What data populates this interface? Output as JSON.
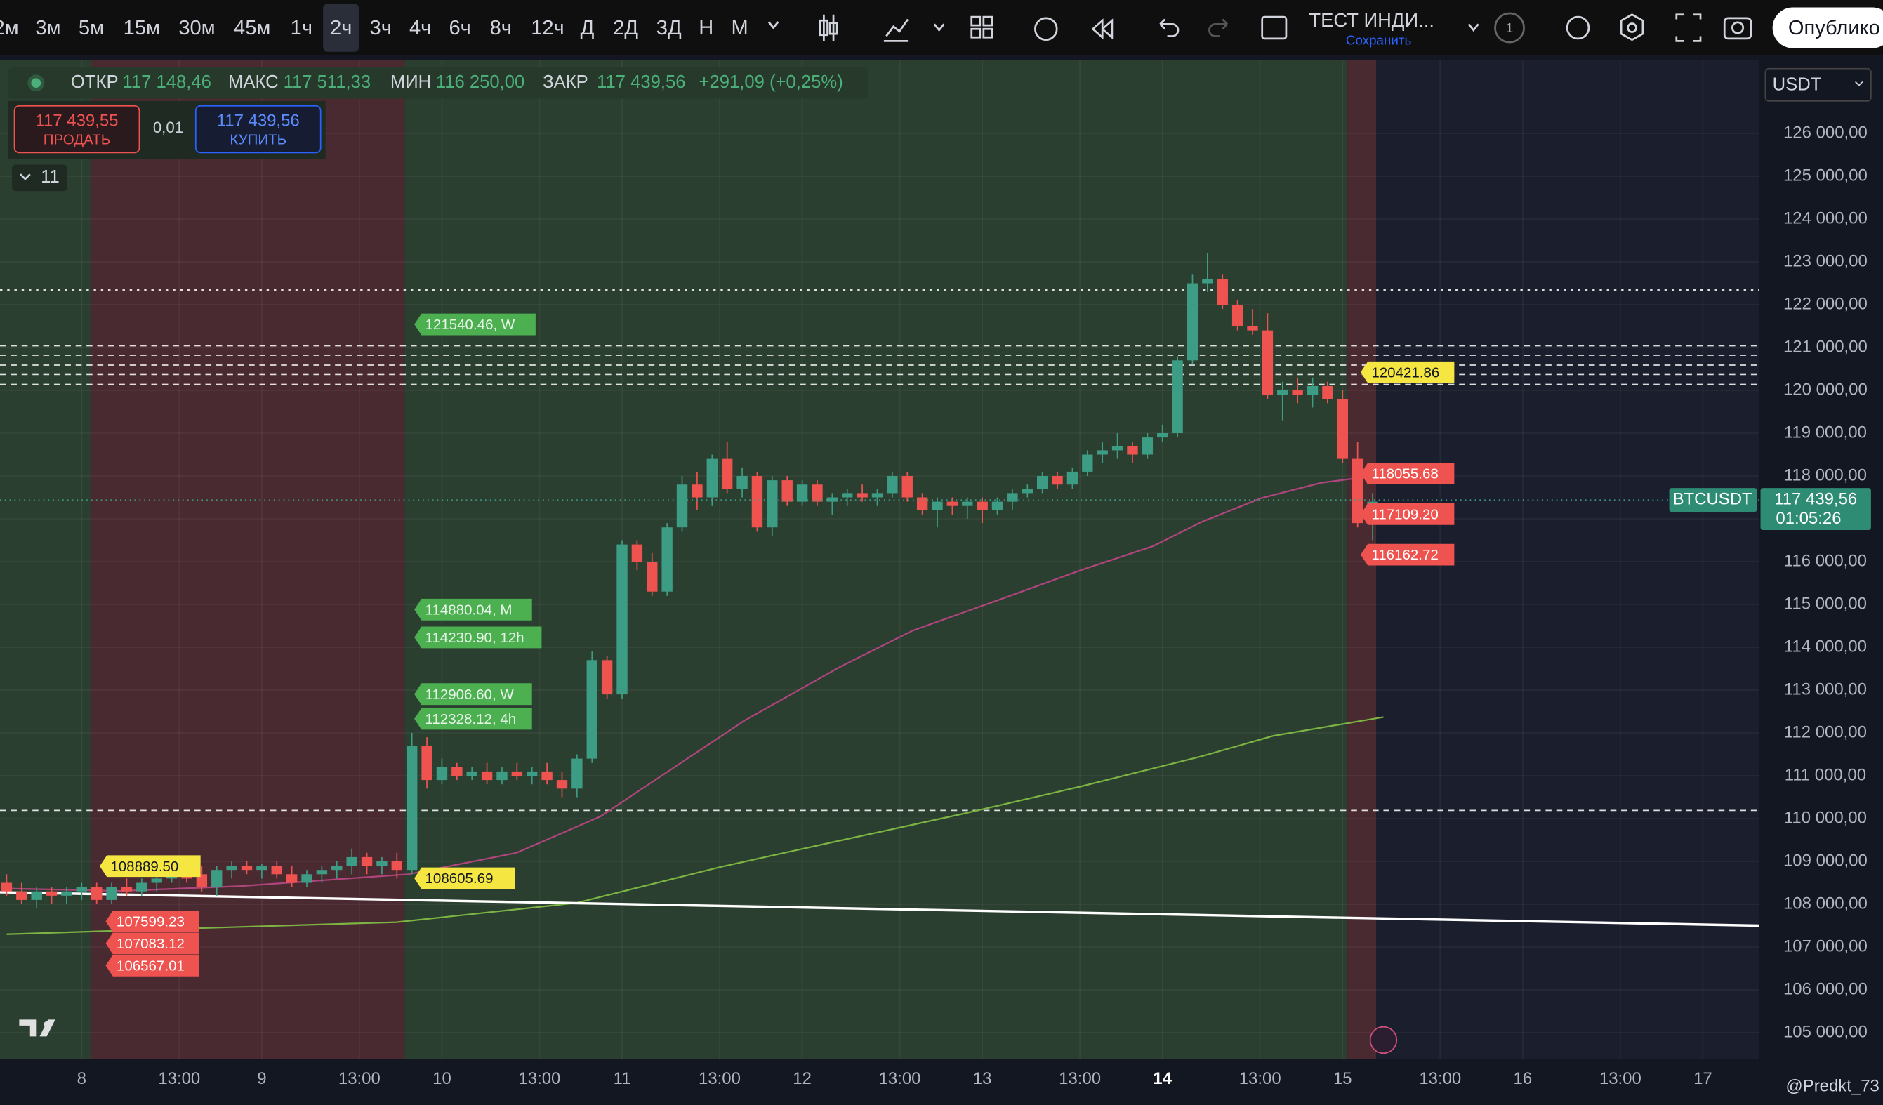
{
  "toolbar": {
    "intervals": [
      "2м",
      "3м",
      "5м",
      "15м",
      "30м",
      "45м",
      "1ч",
      "2ч",
      "3ч",
      "4ч",
      "6ч",
      "8ч",
      "12ч",
      "Д",
      "2Д",
      "3Д",
      "Н",
      "М"
    ],
    "selected_index": 7,
    "indicator": "ТЕСТ ИНДИ...",
    "save": "Сохранить",
    "alerts": "1",
    "publish": "Опублико"
  },
  "legend": {
    "open_label": "ОТКР",
    "open": "117 148,46",
    "high_label": "МАКС",
    "high": "117 511,33",
    "low_label": "МИН",
    "low": "116 250,00",
    "close_label": "ЗАКР",
    "close": "117 439,56",
    "change": "+291,09 (+0,25%)"
  },
  "trade": {
    "sell_price": "117 439,55",
    "sell": "ПРОДАТЬ",
    "spread": "0,01",
    "buy_price": "117 439,56",
    "buy": "КУПИТЬ",
    "indicators_count": "11"
  },
  "watermark": "@Predkt_73",
  "chart_data": {
    "type": "candlestick",
    "symbol": "BTCUSDT",
    "currency": "USDT",
    "countdown": "01:05:26",
    "last_price": {
      "value": 117439.56,
      "label": "117 439,56"
    },
    "up_color": "#3d9c84",
    "down_color": "#ef5350",
    "xlim": [
      -0.44,
      116.76
    ],
    "ylim": [
      104380,
      127710
    ],
    "xticks": [
      {
        "value": 5,
        "label": "8"
      },
      {
        "value": 11.5,
        "label": "13:00"
      },
      {
        "value": 17,
        "label": "9"
      },
      {
        "value": 23.5,
        "label": "13:00"
      },
      {
        "value": 29,
        "label": "10"
      },
      {
        "value": 35.5,
        "label": "13:00"
      },
      {
        "value": 41,
        "label": "11"
      },
      {
        "value": 47.5,
        "label": "13:00"
      },
      {
        "value": 53,
        "label": "12"
      },
      {
        "value": 59.5,
        "label": "13:00"
      },
      {
        "value": 65,
        "label": "13"
      },
      {
        "value": 71.5,
        "label": "13:00"
      },
      {
        "value": 77,
        "label": "14"
      },
      {
        "value": 83.5,
        "label": "13:00"
      },
      {
        "value": 89,
        "label": "15"
      },
      {
        "value": 95.5,
        "label": "13:00"
      },
      {
        "value": 101,
        "label": "16"
      },
      {
        "value": 107.5,
        "label": "13:00"
      },
      {
        "value": 113,
        "label": "17"
      }
    ],
    "highlight_xtick": 12,
    "yticks": [
      {
        "value": 105000,
        "label": "105 000,00"
      },
      {
        "value": 106000,
        "label": "106 000,00"
      },
      {
        "value": 107000,
        "label": "107 000,00"
      },
      {
        "value": 108000,
        "label": "108 000,00"
      },
      {
        "value": 109000,
        "label": "109 000,00"
      },
      {
        "value": 110000,
        "label": "110 000,00"
      },
      {
        "value": 111000,
        "label": "111 000,00"
      },
      {
        "value": 112000,
        "label": "112 000,00"
      },
      {
        "value": 113000,
        "label": "113 000,00"
      },
      {
        "value": 114000,
        "label": "114 000,00"
      },
      {
        "value": 115000,
        "label": "115 000,00"
      },
      {
        "value": 116000,
        "label": "116 000,00"
      },
      {
        "value": 117000,
        "label": "117 000,00"
      },
      {
        "value": 118000,
        "label": "118 000,00"
      },
      {
        "value": 119000,
        "label": "119 000,00"
      },
      {
        "value": 120000,
        "label": "120 000,00"
      },
      {
        "value": 121000,
        "label": "121 000,00"
      },
      {
        "value": 122000,
        "label": "122 000,00"
      },
      {
        "value": 123000,
        "label": "123 000,00"
      },
      {
        "value": 124000,
        "label": "124 000,00"
      },
      {
        "value": 125000,
        "label": "125 000,00"
      },
      {
        "value": 126000,
        "label": "126 000,00"
      }
    ],
    "candles": [
      [
        108500,
        108700,
        108200,
        108300
      ],
      [
        108300,
        108500,
        108000,
        108100
      ],
      [
        108100,
        108400,
        107900,
        108300
      ],
      [
        108300,
        108400,
        108000,
        108200
      ],
      [
        108200,
        108400,
        108000,
        108300
      ],
      [
        108300,
        108500,
        108100,
        108400
      ],
      [
        108400,
        108500,
        108000,
        108100
      ],
      [
        108100,
        108500,
        108000,
        108400
      ],
      [
        108400,
        108600,
        108200,
        108300
      ],
      [
        108300,
        108600,
        108200,
        108500
      ],
      [
        108500,
        108700,
        108300,
        108600
      ],
      [
        108600,
        108900,
        108500,
        108800
      ],
      [
        108800,
        109000,
        108500,
        108600
      ],
      [
        108700,
        108900,
        108300,
        108400
      ],
      [
        108400,
        108900,
        108200,
        108800
      ],
      [
        108800,
        109000,
        108600,
        108900
      ],
      [
        108900,
        109000,
        108700,
        108800
      ],
      [
        108800,
        108950,
        108600,
        108900
      ],
      [
        108900,
        109000,
        108600,
        108700
      ],
      [
        108700,
        108900,
        108400,
        108500
      ],
      [
        108500,
        108800,
        108400,
        108700
      ],
      [
        108700,
        108900,
        108500,
        108800
      ],
      [
        108800,
        109000,
        108600,
        108900
      ],
      [
        108900,
        109300,
        108700,
        109100
      ],
      [
        109100,
        109200,
        108700,
        108900
      ],
      [
        108900,
        109100,
        108700,
        109000
      ],
      [
        109000,
        109200,
        108600,
        108800
      ],
      [
        108800,
        112000,
        108700,
        111700
      ],
      [
        111700,
        111900,
        110700,
        110900
      ],
      [
        110900,
        111400,
        110800,
        111200
      ],
      [
        111200,
        111300,
        110900,
        111000
      ],
      [
        111000,
        111200,
        110900,
        111100
      ],
      [
        111100,
        111300,
        110800,
        110900
      ],
      [
        110900,
        111200,
        110800,
        111100
      ],
      [
        111100,
        111300,
        110900,
        111000
      ],
      [
        111000,
        111200,
        110800,
        111100
      ],
      [
        111100,
        111300,
        110800,
        110900
      ],
      [
        110900,
        111100,
        110500,
        110700
      ],
      [
        110700,
        111500,
        110500,
        111400
      ],
      [
        111400,
        113900,
        111300,
        113700
      ],
      [
        113700,
        113800,
        112800,
        112900
      ],
      [
        112900,
        116500,
        112800,
        116400
      ],
      [
        116400,
        116500,
        115800,
        116000
      ],
      [
        116000,
        116200,
        115200,
        115300
      ],
      [
        115300,
        116900,
        115200,
        116800
      ],
      [
        116800,
        118000,
        116700,
        117800
      ],
      [
        117800,
        118100,
        117200,
        117500
      ],
      [
        117500,
        118500,
        117300,
        118400
      ],
      [
        118400,
        118800,
        117600,
        117700
      ],
      [
        117700,
        118200,
        117500,
        118000
      ],
      [
        118000,
        118100,
        116700,
        116800
      ],
      [
        116800,
        118000,
        116600,
        117900
      ],
      [
        117900,
        118000,
        117300,
        117400
      ],
      [
        117400,
        117900,
        117300,
        117800
      ],
      [
        117800,
        117900,
        117300,
        117400
      ],
      [
        117400,
        117600,
        117100,
        117500
      ],
      [
        117500,
        117700,
        117300,
        117600
      ],
      [
        117600,
        117800,
        117400,
        117500
      ],
      [
        117500,
        117700,
        117300,
        117600
      ],
      [
        117600,
        118100,
        117500,
        118000
      ],
      [
        118000,
        118100,
        117400,
        117500
      ],
      [
        117500,
        117600,
        117100,
        117200
      ],
      [
        117200,
        117500,
        116800,
        117400
      ],
      [
        117400,
        117500,
        117100,
        117300
      ],
      [
        117300,
        117500,
        117000,
        117400
      ],
      [
        117400,
        117500,
        116900,
        117200
      ],
      [
        117200,
        117500,
        117100,
        117400
      ],
      [
        117400,
        117700,
        117200,
        117600
      ],
      [
        117600,
        117800,
        117500,
        117700
      ],
      [
        117700,
        118100,
        117600,
        118000
      ],
      [
        118000,
        118100,
        117700,
        117800
      ],
      [
        117800,
        118200,
        117700,
        118100
      ],
      [
        118100,
        118600,
        118000,
        118500
      ],
      [
        118500,
        118800,
        118300,
        118600
      ],
      [
        118600,
        119000,
        118400,
        118700
      ],
      [
        118700,
        118800,
        118300,
        118500
      ],
      [
        118500,
        119000,
        118400,
        118900
      ],
      [
        118900,
        119200,
        118800,
        119000
      ],
      [
        119000,
        120800,
        118900,
        120700
      ],
      [
        120700,
        122700,
        120600,
        122500
      ],
      [
        122500,
        123200,
        122300,
        122600
      ],
      [
        122600,
        122700,
        121900,
        122000
      ],
      [
        122000,
        122100,
        121400,
        121500
      ],
      [
        121500,
        121900,
        121300,
        121400
      ],
      [
        121400,
        121800,
        119800,
        119900
      ],
      [
        119900,
        120200,
        119300,
        120000
      ],
      [
        120000,
        120300,
        119700,
        119900
      ],
      [
        119900,
        120300,
        119600,
        120100
      ],
      [
        120100,
        120200,
        119700,
        119800
      ],
      [
        119800,
        120000,
        118300,
        118400
      ],
      [
        118400,
        118800,
        116800,
        116900
      ],
      [
        116900,
        117600,
        116500,
        117400
      ]
    ],
    "series": [
      {
        "color": "#b0457e",
        "x": [
          0,
          7.56,
          15.56,
          26.76,
          33.96,
          39.56,
          44.36,
          49.16,
          55.56,
          60.36,
          65.96,
          71.56,
          76.36,
          79.56,
          83.56,
          87.56,
          89.96
        ],
        "values": [
          108367,
          108310,
          108422,
          108700,
          109200,
          110050,
          111170,
          112290,
          113550,
          114390,
          115090,
          115800,
          116360,
          116920,
          117480,
          117840,
          117950
        ]
      },
      {
        "color": "#7cb342",
        "x": [
          0,
          15.56,
          25.96,
          37.96,
          47.56,
          55.56,
          63.56,
          71.56,
          79.56,
          84.36,
          91.72
        ],
        "values": [
          107300,
          107470,
          107580,
          108030,
          108870,
          109490,
          110100,
          110750,
          111450,
          111930,
          112370
        ]
      },
      {
        "color": "#ffffff",
        "x": [
          -0.44,
          116.76
        ],
        "values": [
          108280,
          107500
        ]
      }
    ],
    "levels": [
      {
        "value": 122350,
        "style": "dotted"
      },
      {
        "value": 121040,
        "style": "dashed"
      },
      {
        "value": 120820,
        "style": "dashed"
      },
      {
        "value": 120590,
        "style": "dashed"
      },
      {
        "value": 120370,
        "style": "dashed"
      },
      {
        "value": 120140,
        "style": "dashed"
      },
      {
        "value": 110190,
        "style": "dashed"
      }
    ],
    "annotations": [
      {
        "label": "121540.46, W",
        "value": 121540.46,
        "color": "#4caf50"
      },
      {
        "label": "114880.04, M",
        "value": 114880.04,
        "color": "#4caf50"
      },
      {
        "label": "114230.90, 12h",
        "value": 114230.9,
        "color": "#4caf50"
      },
      {
        "label": "112906.60, W",
        "value": 112906.6,
        "color": "#4caf50"
      },
      {
        "label": "112328.12, 4h",
        "value": 112328.12,
        "color": "#4caf50"
      },
      {
        "label": "108605.69",
        "value": 108605.69,
        "color": "#f5e642"
      },
      {
        "label": "108889.50",
        "value": 108889.5,
        "color": "#f5e642"
      },
      {
        "label": "107599.23",
        "value": 107599.23,
        "color": "#ef5350"
      },
      {
        "label": "107083.12",
        "value": 107083.12,
        "color": "#ef5350"
      },
      {
        "label": "106567.01",
        "value": 106567.01,
        "color": "#ef5350"
      },
      {
        "label": "120421.86",
        "value": 120421.86,
        "color": "#f5e642"
      },
      {
        "label": "118055.68",
        "value": 118055.68,
        "color": "#ef5350"
      },
      {
        "label": "117109.20",
        "value": 117109.2,
        "color": "#ef5350"
      },
      {
        "label": "116162.72",
        "value": 116162.72,
        "color": "#ef5350"
      }
    ]
  }
}
